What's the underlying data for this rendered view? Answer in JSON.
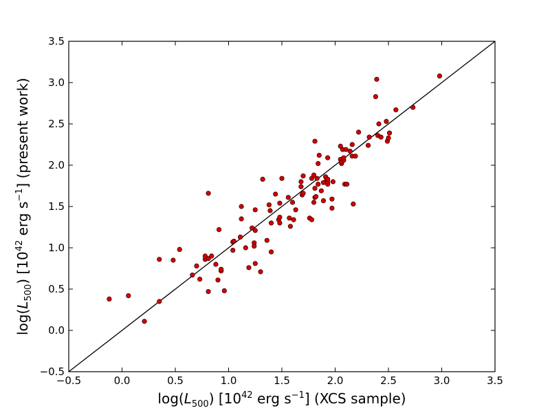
{
  "chart_data": {
    "type": "scatter",
    "title": "",
    "xlabel": {
      "pre": "log(",
      "var": "L",
      "sub": "500",
      "mid": ") [10",
      "exp": "42",
      "unit": " erg s",
      "unit_exp": "−1",
      "post": "]  (XCS sample)"
    },
    "ylabel": {
      "pre": "log(",
      "var": "L",
      "sub": "500",
      "mid": ") [10",
      "exp": "42",
      "unit": " erg s",
      "unit_exp": "−1",
      "post": "]  (present work)"
    },
    "xlim": [
      -0.5,
      3.5
    ],
    "ylim": [
      -0.5,
      3.5
    ],
    "x_ticks": [
      -0.5,
      0.0,
      0.5,
      1.0,
      1.5,
      2.0,
      2.5,
      3.0,
      3.5
    ],
    "y_ticks": [
      -0.5,
      0.0,
      0.5,
      1.0,
      1.5,
      2.0,
      2.5,
      3.0,
      3.5
    ],
    "x_tick_labels": [
      "−0.5",
      "0.0",
      "0.5",
      "1.0",
      "1.5",
      "2.0",
      "2.5",
      "3.0",
      "3.5"
    ],
    "y_tick_labels": [
      "−0.5",
      "0.0",
      "0.5",
      "1.0",
      "1.5",
      "2.0",
      "2.5",
      "3.0",
      "3.5"
    ],
    "grid": false,
    "legend": "none",
    "reference_line": {
      "x": [
        -0.5,
        3.5
      ],
      "y": [
        -0.5,
        3.5
      ],
      "color": "#000000"
    },
    "marker_color": "#d40000",
    "marker_edge": "#3a0000",
    "points": [
      [
        -0.12,
        0.38
      ],
      [
        0.06,
        0.42
      ],
      [
        0.21,
        0.11
      ],
      [
        0.35,
        0.86
      ],
      [
        0.35,
        0.35
      ],
      [
        0.48,
        0.85
      ],
      [
        0.54,
        0.98
      ],
      [
        0.66,
        0.67
      ],
      [
        0.7,
        0.78
      ],
      [
        0.73,
        0.62
      ],
      [
        0.78,
        0.86
      ],
      [
        0.78,
        0.9
      ],
      [
        0.81,
        0.87
      ],
      [
        0.81,
        1.66
      ],
      [
        0.81,
        0.47
      ],
      [
        0.84,
        0.9
      ],
      [
        0.88,
        0.8
      ],
      [
        0.9,
        0.61
      ],
      [
        0.91,
        1.22
      ],
      [
        0.93,
        0.72
      ],
      [
        0.93,
        0.74
      ],
      [
        0.96,
        0.48
      ],
      [
        1.04,
        0.97
      ],
      [
        1.04,
        1.07
      ],
      [
        1.05,
        1.08
      ],
      [
        1.11,
        1.13
      ],
      [
        1.12,
        1.5
      ],
      [
        1.12,
        1.35
      ],
      [
        1.16,
        1.0
      ],
      [
        1.19,
        0.76
      ],
      [
        1.22,
        1.24
      ],
      [
        1.24,
        1.06
      ],
      [
        1.24,
        1.02
      ],
      [
        1.25,
        0.81
      ],
      [
        1.25,
        1.46
      ],
      [
        1.25,
        1.21
      ],
      [
        1.3,
        0.71
      ],
      [
        1.32,
        1.83
      ],
      [
        1.36,
        1.09
      ],
      [
        1.38,
        1.52
      ],
      [
        1.39,
        1.45
      ],
      [
        1.4,
        0.95
      ],
      [
        1.4,
        1.3
      ],
      [
        1.44,
        1.65
      ],
      [
        1.47,
        1.34
      ],
      [
        1.48,
        1.3
      ],
      [
        1.48,
        1.54
      ],
      [
        1.48,
        1.37
      ],
      [
        1.5,
        1.84
      ],
      [
        1.56,
        1.61
      ],
      [
        1.57,
        1.36
      ],
      [
        1.58,
        1.26
      ],
      [
        1.6,
        1.55
      ],
      [
        1.61,
        1.34
      ],
      [
        1.63,
        1.46
      ],
      [
        1.68,
        1.8
      ],
      [
        1.68,
        1.74
      ],
      [
        1.69,
        1.64
      ],
      [
        1.7,
        1.66
      ],
      [
        1.7,
        1.87
      ],
      [
        1.76,
        1.36
      ],
      [
        1.78,
        1.34
      ],
      [
        1.78,
        1.84
      ],
      [
        1.8,
        1.55
      ],
      [
        1.8,
        1.88
      ],
      [
        1.81,
        2.29
      ],
      [
        1.81,
        1.72
      ],
      [
        1.81,
        1.61
      ],
      [
        1.82,
        1.62
      ],
      [
        1.83,
        1.84
      ],
      [
        1.84,
        2.02
      ],
      [
        1.84,
        1.77
      ],
      [
        1.85,
        2.12
      ],
      [
        1.87,
        1.69
      ],
      [
        1.89,
        1.57
      ],
      [
        1.89,
        1.79
      ],
      [
        1.91,
        1.86
      ],
      [
        1.92,
        1.82
      ],
      [
        1.93,
        1.77
      ],
      [
        1.93,
        1.8
      ],
      [
        1.93,
        1.83
      ],
      [
        1.93,
        2.09
      ],
      [
        1.97,
        1.48
      ],
      [
        1.97,
        1.59
      ],
      [
        1.98,
        1.8
      ],
      [
        2.05,
        2.23
      ],
      [
        2.05,
        2.07
      ],
      [
        2.06,
        2.02
      ],
      [
        2.06,
        2.04
      ],
      [
        2.07,
        2.19
      ],
      [
        2.08,
        2.06
      ],
      [
        2.08,
        2.09
      ],
      [
        2.09,
        1.77
      ],
      [
        2.1,
        2.19
      ],
      [
        2.11,
        1.77
      ],
      [
        2.14,
        2.17
      ],
      [
        2.16,
        2.11
      ],
      [
        2.16,
        2.25
      ],
      [
        2.17,
        1.53
      ],
      [
        2.19,
        2.11
      ],
      [
        2.22,
        2.4
      ],
      [
        2.31,
        2.24
      ],
      [
        2.32,
        2.34
      ],
      [
        2.38,
        2.83
      ],
      [
        2.39,
        3.04
      ],
      [
        2.4,
        2.36
      ],
      [
        2.41,
        2.5
      ],
      [
        2.43,
        2.34
      ],
      [
        2.48,
        2.53
      ],
      [
        2.49,
        2.29
      ],
      [
        2.5,
        2.33
      ],
      [
        2.51,
        2.39
      ],
      [
        2.57,
        2.67
      ],
      [
        2.73,
        2.7
      ],
      [
        2.98,
        3.08
      ]
    ]
  }
}
